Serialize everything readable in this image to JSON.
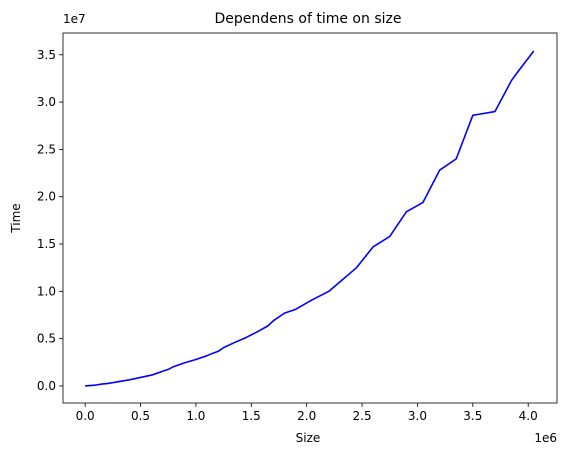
{
  "chart_data": {
    "type": "line",
    "title": "Dependens of time on size",
    "xlabel": "Size",
    "ylabel": "Time",
    "x_offset_label": "1e6",
    "y_offset_label": "1e7",
    "x_scale": 1000000,
    "y_scale": 10000000,
    "xlim": [
      -200000,
      4260000
    ],
    "ylim": [
      -1800000,
      37300000
    ],
    "xticks": [
      0,
      500000,
      1000000,
      1500000,
      2000000,
      2500000,
      3000000,
      3500000,
      4000000
    ],
    "xtick_labels": [
      "0.0",
      "0.5",
      "1.0",
      "1.5",
      "2.0",
      "2.5",
      "3.0",
      "3.5",
      "4.0"
    ],
    "yticks": [
      0,
      5000000,
      10000000,
      15000000,
      20000000,
      25000000,
      30000000,
      35000000
    ],
    "ytick_labels": [
      "0.0",
      "0.5",
      "1.0",
      "1.5",
      "2.0",
      "2.5",
      "3.0",
      "3.5"
    ],
    "grid": false,
    "color": "#0000ff",
    "x": [
      0,
      100000,
      150000,
      200000,
      300000,
      400000,
      500000,
      600000,
      650000,
      700000,
      750000,
      800000,
      900000,
      1000000,
      1100000,
      1150000,
      1200000,
      1250000,
      1350000,
      1450000,
      1550000,
      1650000,
      1700000,
      1800000,
      1900000,
      2050000,
      2200000,
      2300000,
      2450000,
      2600000,
      2750000,
      2900000,
      3050000,
      3200000,
      3350000,
      3500000,
      3550000,
      3700000,
      3850000,
      3900000,
      4050000
    ],
    "y": [
      0,
      100000,
      200000,
      250000,
      450000,
      650000,
      900000,
      1150000,
      1350000,
      1550000,
      1750000,
      2050000,
      2450000,
      2800000,
      3200000,
      3450000,
      3650000,
      4050000,
      4600000,
      5100000,
      5700000,
      6350000,
      6900000,
      7700000,
      8100000,
      9100000,
      10000000,
      11000000,
      12500000,
      14700000,
      15800000,
      18400000,
      19400000,
      22800000,
      24000000,
      28600000,
      28700000,
      29000000,
      32300000,
      33100000,
      35400000
    ]
  }
}
